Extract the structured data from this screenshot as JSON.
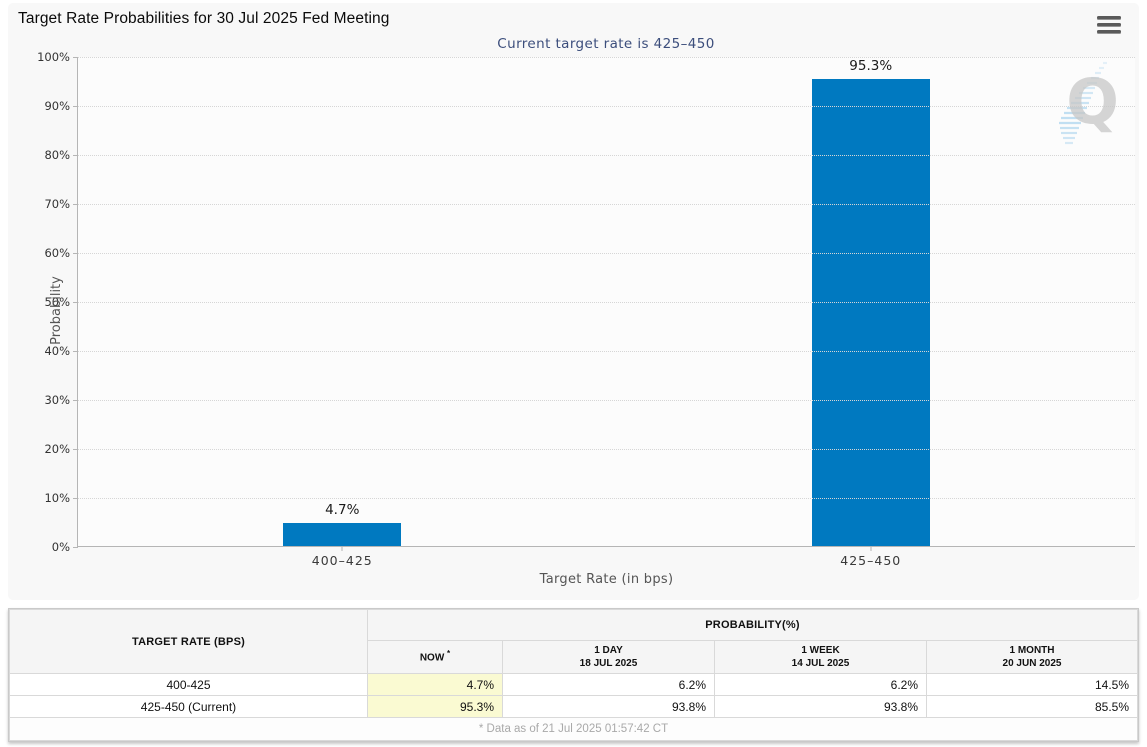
{
  "header": {
    "title": "Target Rate Probabilities for 30 Jul 2025 Fed Meeting"
  },
  "subtitle": "Current target rate is 425–450",
  "chart_data": {
    "type": "bar",
    "title": "Target Rate Probabilities for 30 Jul 2025 Fed Meeting",
    "subtitle": "Current target rate is 425–450",
    "categories": [
      "400–425",
      "425–450"
    ],
    "values": [
      4.7,
      95.3
    ],
    "value_labels": [
      "4.7%",
      "95.3%"
    ],
    "xlabel": "Target Rate (in bps)",
    "ylabel": "Probability",
    "ylim": [
      0,
      100
    ],
    "yticks": [
      "0%",
      "10%",
      "20%",
      "30%",
      "40%",
      "50%",
      "60%",
      "70%",
      "80%",
      "90%",
      "100%"
    ],
    "grid": "horizontal-dotted",
    "legend": "none",
    "bar_color": "#0079c0"
  },
  "watermark": {
    "letter": "Q"
  },
  "table": {
    "col1_header": "TARGET RATE (BPS)",
    "group_header": "PROBABILITY(%)",
    "columns": [
      {
        "line1": "NOW",
        "sup": "*",
        "line2": ""
      },
      {
        "line1": "1 DAY",
        "line2": "18 JUL 2025"
      },
      {
        "line1": "1 WEEK",
        "line2": "14 JUL 2025"
      },
      {
        "line1": "1 MONTH",
        "line2": "20 JUN 2025"
      }
    ],
    "rows": [
      {
        "target": "400-425",
        "now": "4.7%",
        "day": "6.2%",
        "week": "6.2%",
        "month": "14.5%"
      },
      {
        "target": "425-450 (Current)",
        "now": "95.3%",
        "day": "93.8%",
        "week": "93.8%",
        "month": "85.5%"
      }
    ],
    "footnote": "* Data as of 21 Jul 2025 01:57:42 CT"
  },
  "colors": {
    "bar": "#0079c0",
    "subtitle_text": "#3c4e7c",
    "now_column_bg": "#fafad2",
    "panel_bg": "#f8f8f8",
    "header_bg": "#f5f5f5"
  }
}
